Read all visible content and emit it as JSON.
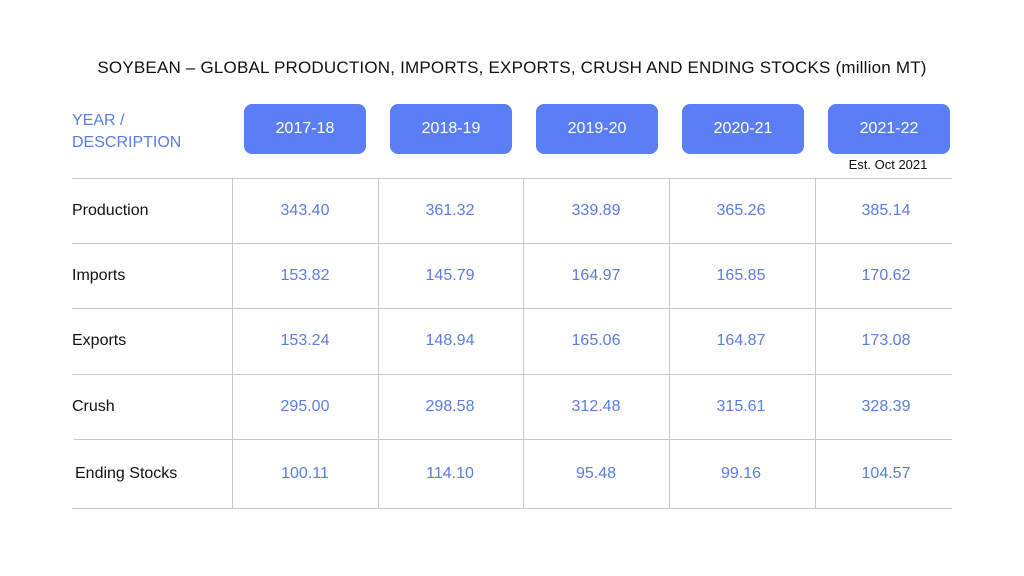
{
  "title": "SOYBEAN – GLOBAL PRODUCTION, IMPORTS, EXPORTS, CRUSH AND ENDING STOCKS (million MT)",
  "row_header": "YEAR / DESCRIPTION",
  "years": [
    "2017-18",
    "2018-19",
    "2019-20",
    "2020-21",
    "2021-22"
  ],
  "est_note": "Est. Oct 2021",
  "rows": [
    {
      "label": "Production",
      "values": [
        "343.40",
        "361.32",
        "339.89",
        "365.26",
        "385.14"
      ]
    },
    {
      "label": "Imports",
      "values": [
        "153.82",
        "145.79",
        "164.97",
        "165.85",
        "170.62"
      ]
    },
    {
      "label": "Exports",
      "values": [
        "153.24",
        "148.94",
        "165.06",
        "164.87",
        "173.08"
      ]
    },
    {
      "label": "Crush",
      "values": [
        "295.00",
        "298.58",
        "312.48",
        "315.61",
        "328.39"
      ]
    },
    {
      "label": "Ending Stocks",
      "values": [
        "100.11",
        "114.10",
        "95.48",
        "99.16",
        "104.57"
      ]
    }
  ],
  "colors": {
    "accent": "#5b7ef6",
    "value_text": "#5b7de0",
    "grid": "#c8c8c8"
  },
  "chart_data": {
    "type": "table",
    "title": "SOYBEAN – GLOBAL PRODUCTION, IMPORTS, EXPORTS, CRUSH AND ENDING STOCKS (million MT)",
    "columns": [
      "2017-18",
      "2018-19",
      "2019-20",
      "2020-21",
      "2021-22"
    ],
    "column_notes": {
      "2021-22": "Est. Oct 2021"
    },
    "series": [
      {
        "name": "Production",
        "values": [
          343.4,
          361.32,
          339.89,
          365.26,
          385.14
        ]
      },
      {
        "name": "Imports",
        "values": [
          153.82,
          145.79,
          164.97,
          165.85,
          170.62
        ]
      },
      {
        "name": "Exports",
        "values": [
          153.24,
          148.94,
          165.06,
          164.87,
          173.08
        ]
      },
      {
        "name": "Crush",
        "values": [
          295.0,
          298.58,
          312.48,
          315.61,
          328.39
        ]
      },
      {
        "name": "Ending Stocks",
        "values": [
          100.11,
          114.1,
          95.48,
          99.16,
          104.57
        ]
      }
    ]
  }
}
